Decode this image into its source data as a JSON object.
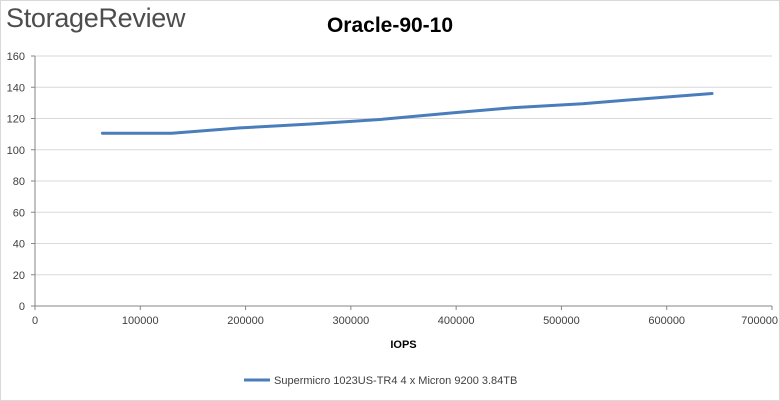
{
  "brand": {
    "logo_text": "StorageReview"
  },
  "colors": {
    "series": "#4a7ebb",
    "grid": "#d9d9d9",
    "axis": "#868686"
  },
  "chart_data": {
    "type": "line",
    "title": "Oracle-90-10",
    "xlabel": "IOPS",
    "ylabel": "",
    "xlim": [
      0,
      700000
    ],
    "ylim": [
      0,
      160
    ],
    "x_ticks": [
      0,
      100000,
      200000,
      300000,
      400000,
      500000,
      600000,
      700000
    ],
    "y_ticks": [
      0,
      20,
      40,
      60,
      80,
      100,
      120,
      140,
      160
    ],
    "grid": "horizontal",
    "legend_position": "bottom",
    "series": [
      {
        "name": "Supermicro 1023US-TR4 4 x Micron 9200 3.84TB",
        "x": [
          64000,
          130000,
          195000,
          262000,
          330000,
          395000,
          455000,
          520000,
          585000,
          643000
        ],
        "y": [
          110.5,
          110.6,
          114,
          116.5,
          119.5,
          123.5,
          127,
          129.5,
          133,
          136
        ]
      }
    ]
  }
}
